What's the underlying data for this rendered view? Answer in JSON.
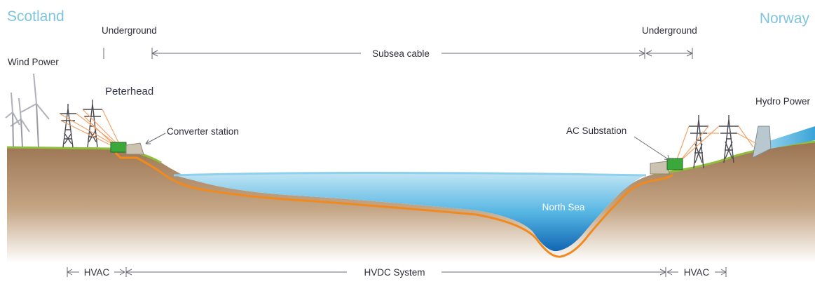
{
  "regions": {
    "left": "Scotland",
    "right": "Norway"
  },
  "top_labels": {
    "underground_left": "Underground",
    "underground_right": "Underground",
    "subsea": "Subsea cable"
  },
  "labels": {
    "wind_power": "Wind Power",
    "peterhead": "Peterhead",
    "converter_station": "Converter station",
    "ac_substation": "AC Substation",
    "hydro_power": "Hydro Power",
    "north_sea": "North Sea"
  },
  "bottom_labels": {
    "hvac_left": "HVAC",
    "hvdc": "HVDC System",
    "hvac_right": "HVAC"
  },
  "colors": {
    "region_text": "#7fc6dd",
    "sea": "#3a9fd4",
    "ground": "#a07a55",
    "grass": "#8fbf3a",
    "cable": "#f08a1e",
    "station": "#3aa83a"
  }
}
